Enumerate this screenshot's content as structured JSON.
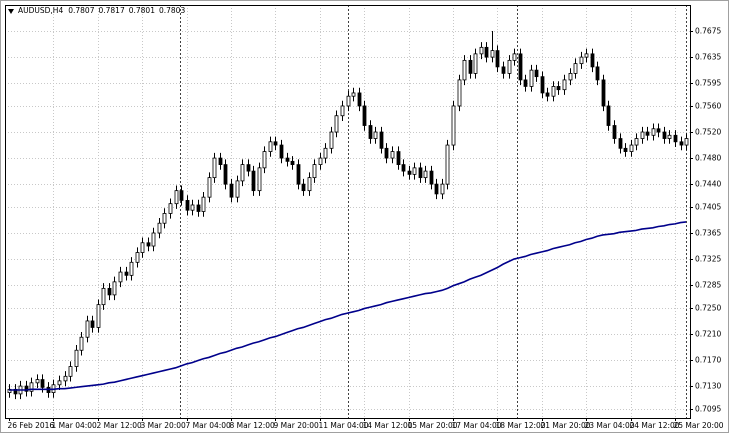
{
  "chart_data": {
    "type": "candlestick",
    "title": "AUDUSD,H4",
    "title_values": [
      0.7807,
      0.7817,
      0.7801,
      0.7803
    ],
    "categories": [
      "26 Feb 2016",
      null,
      null,
      null,
      null,
      null,
      null,
      null,
      "1 Mar 04:00",
      null,
      null,
      null,
      null,
      null,
      null,
      null,
      "2 Mar 12:00",
      null,
      null,
      null,
      null,
      null,
      null,
      null,
      "3 Mar 20:00",
      null,
      null,
      null,
      null,
      null,
      null,
      null,
      "7 Mar 04:00",
      null,
      null,
      null,
      null,
      null,
      null,
      null,
      "8 Mar 12:00",
      null,
      null,
      null,
      null,
      null,
      null,
      null,
      "9 Mar 20:00",
      null,
      null,
      null,
      null,
      null,
      null,
      null,
      "11 Mar 04:00",
      null,
      null,
      null,
      null,
      null,
      null,
      null,
      "14 Mar 12:00",
      null,
      null,
      null,
      null,
      null,
      null,
      null,
      "15 Mar 20:00",
      null,
      null,
      null,
      null,
      null,
      null,
      null,
      "17 Mar 04:00",
      null,
      null,
      null,
      null,
      null,
      null,
      null,
      "18 Mar 12:00",
      null,
      null,
      null,
      null,
      null,
      null,
      null,
      "21 Mar 20:00",
      null,
      null,
      null,
      null,
      null,
      null,
      null,
      "23 Mar 04:00",
      null,
      null,
      null,
      null,
      null,
      null,
      null,
      "24 Mar 12:00",
      null,
      null,
      null,
      null,
      null,
      null,
      null,
      "25 Mar 20:00",
      null,
      null
    ],
    "open": [
      0.712,
      0.7125,
      0.7118,
      0.713,
      0.7122,
      0.7135,
      0.714,
      0.7128,
      0.712,
      0.7132,
      0.7138,
      0.7145,
      0.716,
      0.7185,
      0.7205,
      0.723,
      0.722,
      0.7255,
      0.728,
      0.727,
      0.729,
      0.7305,
      0.73,
      0.732,
      0.7335,
      0.735,
      0.7345,
      0.7365,
      0.738,
      0.7395,
      0.741,
      0.743,
      0.7415,
      0.74,
      0.7408,
      0.7398,
      0.742,
      0.745,
      0.748,
      0.747,
      0.744,
      0.742,
      0.7445,
      0.747,
      0.746,
      0.743,
      0.7465,
      0.749,
      0.7505,
      0.75,
      0.748,
      0.7475,
      0.747,
      0.744,
      0.743,
      0.745,
      0.747,
      0.748,
      0.7495,
      0.752,
      0.7545,
      0.756,
      0.7575,
      0.758,
      0.756,
      0.753,
      0.751,
      0.752,
      0.7495,
      0.748,
      0.749,
      0.747,
      0.746,
      0.7455,
      0.7465,
      0.745,
      0.746,
      0.744,
      0.7425,
      0.744,
      0.75,
      0.756,
      0.76,
      0.763,
      0.761,
      0.764,
      0.765,
      0.7635,
      0.7645,
      0.762,
      0.761,
      0.763,
      0.764,
      0.76,
      0.759,
      0.7615,
      0.7605,
      0.758,
      0.7575,
      0.759,
      0.7585,
      0.76,
      0.761,
      0.7625,
      0.7635,
      0.764,
      0.762,
      0.76,
      0.756,
      0.753,
      0.751,
      0.7495,
      0.749,
      0.75,
      0.751,
      0.752,
      0.7515,
      0.7525,
      0.752,
      0.751,
      0.7515,
      0.7505,
      0.75
    ],
    "high": [
      0.7133,
      0.7133,
      0.7138,
      0.7138,
      0.7143,
      0.7148,
      0.7148,
      0.7136,
      0.714,
      0.7146,
      0.7153,
      0.7168,
      0.7193,
      0.7213,
      0.7238,
      0.7238,
      0.7263,
      0.7288,
      0.7288,
      0.7298,
      0.7313,
      0.7313,
      0.7328,
      0.7343,
      0.7358,
      0.7358,
      0.7373,
      0.7388,
      0.7403,
      0.7418,
      0.7438,
      0.7438,
      0.7423,
      0.7416,
      0.7416,
      0.7428,
      0.7458,
      0.7488,
      0.7488,
      0.7478,
      0.7448,
      0.7453,
      0.7478,
      0.7478,
      0.7468,
      0.7473,
      0.7498,
      0.7513,
      0.7513,
      0.7508,
      0.7488,
      0.7483,
      0.7478,
      0.7448,
      0.7458,
      0.7478,
      0.7488,
      0.7503,
      0.7528,
      0.7553,
      0.7568,
      0.7583,
      0.7588,
      0.7588,
      0.7568,
      0.7538,
      0.7528,
      0.7528,
      0.7503,
      0.7498,
      0.7498,
      0.7478,
      0.7468,
      0.7473,
      0.7473,
      0.7468,
      0.7468,
      0.7448,
      0.7448,
      0.7508,
      0.7568,
      0.7608,
      0.7638,
      0.7638,
      0.7648,
      0.7658,
      0.7658,
      0.7675,
      0.7653,
      0.7628,
      0.7638,
      0.7648,
      0.7648,
      0.7608,
      0.7623,
      0.7623,
      0.7613,
      0.7588,
      0.7598,
      0.7598,
      0.7608,
      0.7618,
      0.7633,
      0.7643,
      0.7648,
      0.7648,
      0.7628,
      0.7608,
      0.7568,
      0.7538,
      0.7518,
      0.7503,
      0.7508,
      0.7518,
      0.7528,
      0.7528,
      0.7533,
      0.7533,
      0.7528,
      0.7523,
      0.7523,
      0.7513,
      0.7518
    ],
    "low": [
      0.7112,
      0.711,
      0.711,
      0.7114,
      0.7114,
      0.7127,
      0.712,
      0.7112,
      0.7112,
      0.7124,
      0.713,
      0.7137,
      0.7152,
      0.7177,
      0.7197,
      0.7212,
      0.7212,
      0.7247,
      0.7262,
      0.7262,
      0.7282,
      0.7292,
      0.7292,
      0.7312,
      0.7327,
      0.7337,
      0.7337,
      0.7357,
      0.7372,
      0.7387,
      0.7402,
      0.7407,
      0.7392,
      0.7392,
      0.739,
      0.739,
      0.7412,
      0.7442,
      0.7462,
      0.7432,
      0.7412,
      0.7412,
      0.7437,
      0.7452,
      0.7422,
      0.7422,
      0.7457,
      0.7482,
      0.7492,
      0.7472,
      0.7467,
      0.7462,
      0.7432,
      0.7422,
      0.7422,
      0.7442,
      0.7462,
      0.7472,
      0.7487,
      0.7512,
      0.7537,
      0.7552,
      0.7567,
      0.7552,
      0.7522,
      0.7502,
      0.7502,
      0.7487,
      0.7472,
      0.7472,
      0.7462,
      0.7452,
      0.7447,
      0.7447,
      0.7442,
      0.7442,
      0.7432,
      0.7417,
      0.7417,
      0.7432,
      0.7492,
      0.7552,
      0.7592,
      0.7602,
      0.7602,
      0.7632,
      0.7627,
      0.7627,
      0.7612,
      0.7602,
      0.7602,
      0.7622,
      0.7592,
      0.7582,
      0.7582,
      0.7597,
      0.7572,
      0.7567,
      0.7567,
      0.7577,
      0.7577,
      0.7592,
      0.7602,
      0.7617,
      0.7627,
      0.7612,
      0.7592,
      0.7552,
      0.7522,
      0.7502,
      0.7487,
      0.7482,
      0.7482,
      0.7492,
      0.7502,
      0.7507,
      0.7507,
      0.7512,
      0.7502,
      0.7502,
      0.7497,
      0.7492,
      0.7492
    ],
    "close": [
      0.7125,
      0.7118,
      0.713,
      0.7122,
      0.7135,
      0.714,
      0.7128,
      0.712,
      0.7132,
      0.7138,
      0.7145,
      0.716,
      0.7185,
      0.7205,
      0.723,
      0.722,
      0.7255,
      0.728,
      0.727,
      0.729,
      0.7305,
      0.73,
      0.732,
      0.7335,
      0.735,
      0.7345,
      0.7365,
      0.738,
      0.7395,
      0.741,
      0.743,
      0.7415,
      0.74,
      0.7408,
      0.7398,
      0.742,
      0.745,
      0.748,
      0.747,
      0.744,
      0.742,
      0.7445,
      0.747,
      0.746,
      0.743,
      0.7465,
      0.749,
      0.7505,
      0.75,
      0.748,
      0.7475,
      0.747,
      0.744,
      0.743,
      0.745,
      0.747,
      0.748,
      0.7495,
      0.752,
      0.7545,
      0.756,
      0.7575,
      0.758,
      0.756,
      0.753,
      0.751,
      0.752,
      0.7495,
      0.748,
      0.749,
      0.747,
      0.746,
      0.7455,
      0.7465,
      0.745,
      0.746,
      0.744,
      0.7425,
      0.744,
      0.75,
      0.756,
      0.76,
      0.763,
      0.761,
      0.764,
      0.765,
      0.7635,
      0.7645,
      0.762,
      0.761,
      0.763,
      0.764,
      0.76,
      0.759,
      0.7615,
      0.7605,
      0.758,
      0.7575,
      0.759,
      0.7585,
      0.76,
      0.761,
      0.7625,
      0.7635,
      0.764,
      0.762,
      0.76,
      0.756,
      0.753,
      0.751,
      0.7495,
      0.749,
      0.75,
      0.751,
      0.752,
      0.7515,
      0.7525,
      0.752,
      0.751,
      0.7515,
      0.7505,
      0.75,
      0.751
    ],
    "ma": {
      "color": "#00008b",
      "values": [
        0.7124,
        0.7124,
        0.7124,
        0.7124,
        0.7125,
        0.7125,
        0.7125,
        0.7125,
        0.7125,
        0.7126,
        0.7126,
        0.7127,
        0.7128,
        0.7129,
        0.713,
        0.7131,
        0.7132,
        0.7133,
        0.7135,
        0.7136,
        0.7138,
        0.714,
        0.7142,
        0.7144,
        0.7146,
        0.7148,
        0.715,
        0.7152,
        0.7154,
        0.7156,
        0.7158,
        0.7161,
        0.7164,
        0.7166,
        0.7169,
        0.7172,
        0.7174,
        0.7177,
        0.718,
        0.7182,
        0.7185,
        0.7188,
        0.719,
        0.7193,
        0.7196,
        0.7198,
        0.7201,
        0.7204,
        0.7206,
        0.7209,
        0.7212,
        0.7215,
        0.7218,
        0.722,
        0.7223,
        0.7226,
        0.7229,
        0.7232,
        0.7234,
        0.7237,
        0.724,
        0.7242,
        0.7244,
        0.7246,
        0.7249,
        0.7251,
        0.7253,
        0.7255,
        0.7258,
        0.726,
        0.7262,
        0.7264,
        0.7266,
        0.7268,
        0.727,
        0.7272,
        0.7273,
        0.7275,
        0.7277,
        0.728,
        0.7284,
        0.7287,
        0.729,
        0.7294,
        0.7297,
        0.73,
        0.7304,
        0.7308,
        0.7312,
        0.7317,
        0.7321,
        0.7325,
        0.7327,
        0.7329,
        0.7332,
        0.7334,
        0.7336,
        0.7338,
        0.7341,
        0.7343,
        0.7345,
        0.7347,
        0.735,
        0.7352,
        0.7355,
        0.7357,
        0.736,
        0.7362,
        0.7363,
        0.7364,
        0.7366,
        0.7367,
        0.7368,
        0.7369,
        0.7371,
        0.7372,
        0.7373,
        0.7375,
        0.7376,
        0.7378,
        0.7379,
        0.7381,
        0.7382
      ]
    },
    "bull_color": "#ffffff",
    "bear_color": "#000000",
    "ylim": [
      0.7081,
      0.7715
    ],
    "yticks": [
      {
        "value": 0.7095,
        "label": "0.7095"
      },
      {
        "value": 0.713,
        "label": "0.7130"
      },
      {
        "value": 0.717,
        "label": "0.7170"
      },
      {
        "value": 0.721,
        "label": "0.7210"
      },
      {
        "value": 0.725,
        "label": "0.7250"
      },
      {
        "value": 0.7285,
        "label": "0.7285"
      },
      {
        "value": 0.7325,
        "label": "0.7325"
      },
      {
        "value": 0.7365,
        "label": "0.7365"
      },
      {
        "value": 0.7405,
        "label": "0.7405"
      },
      {
        "value": 0.744,
        "label": "0.7440"
      },
      {
        "value": 0.748,
        "label": "0.7480"
      },
      {
        "value": 0.752,
        "label": "0.7520"
      },
      {
        "value": 0.756,
        "label": "0.7560"
      },
      {
        "value": 0.7595,
        "label": "0.7595"
      },
      {
        "value": 0.7635,
        "label": "0.7635"
      },
      {
        "value": 0.7675,
        "label": "0.7675"
      }
    ],
    "grid": true
  }
}
